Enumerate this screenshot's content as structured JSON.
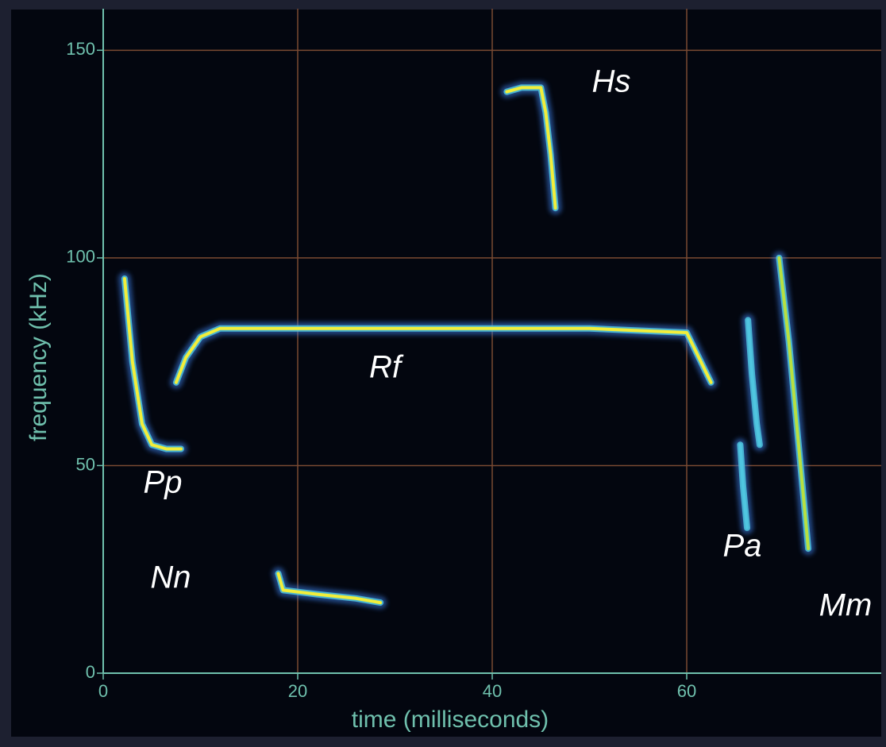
{
  "chart_data": {
    "type": "line",
    "xlabel": "time (milliseconds)",
    "ylabel": "frequency (kHz)",
    "xlim": [
      0,
      80
    ],
    "ylim": [
      0,
      160
    ],
    "xticks": [
      0,
      20,
      40,
      60
    ],
    "yticks": [
      0,
      50,
      100,
      150
    ],
    "grid": true,
    "series": [
      {
        "name": "Pp",
        "color": "#f2ee3a",
        "x": [
          2.2,
          3,
          4,
          5,
          6.5,
          8
        ],
        "values": [
          95,
          75,
          60,
          55,
          54,
          54
        ]
      },
      {
        "name": "Rf",
        "color": "#f2ee3a",
        "x": [
          7.5,
          8.5,
          10,
          12,
          30,
          50,
          60,
          62.5
        ],
        "values": [
          70,
          76,
          81,
          83,
          83,
          83,
          82,
          70
        ]
      },
      {
        "name": "Hs",
        "color": "#f2ee3a",
        "x": [
          41.5,
          43,
          45,
          45.5,
          46,
          46.5
        ],
        "values": [
          140,
          141,
          141,
          135,
          125,
          112
        ]
      },
      {
        "name": "Nn",
        "color": "#f2ee3a",
        "x": [
          18,
          18.5,
          22,
          26,
          28.5
        ],
        "values": [
          24,
          20,
          19,
          18,
          17
        ]
      },
      {
        "name": "Pa",
        "color": "#4fc6e0",
        "x": [
          66.3,
          66.7,
          67.2,
          67.5,
          66,
          65.5,
          65.8,
          66.2
        ],
        "values": [
          85,
          72,
          60,
          55,
          null,
          55,
          45,
          35
        ]
      },
      {
        "name": "Mm",
        "color": "#b8e040",
        "x": [
          69.5,
          70.5,
          71.5,
          72.5
        ],
        "values": [
          100,
          80,
          55,
          30
        ]
      }
    ]
  }
}
